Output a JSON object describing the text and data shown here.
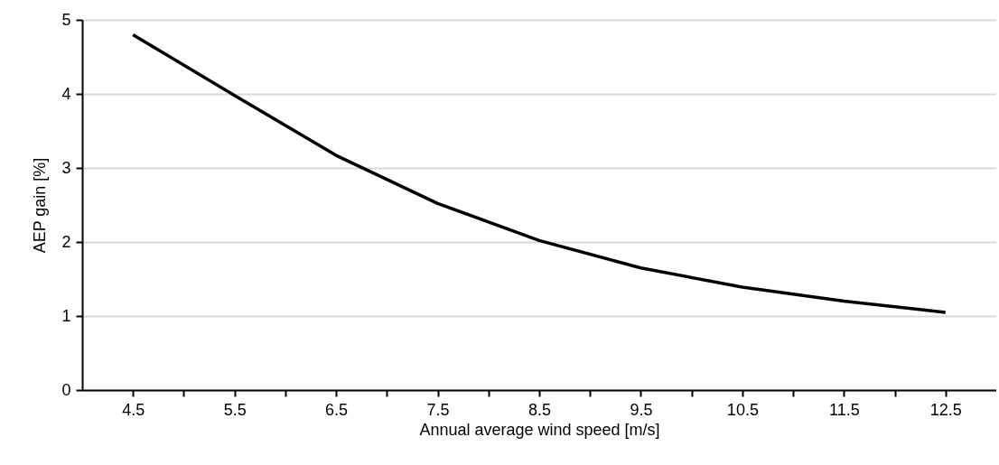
{
  "chart_data": {
    "type": "line",
    "xlabel": "Annual average wind speed [m/s]",
    "ylabel": "AEP gain [%]",
    "x": [
      4.5,
      5.5,
      6.5,
      7.5,
      8.5,
      9.5,
      10.5,
      11.5,
      12.5
    ],
    "series": [
      {
        "color": "#000000",
        "values": [
          4.8,
          3.98,
          3.17,
          2.52,
          2.02,
          1.65,
          1.39,
          1.2,
          1.05
        ]
      }
    ],
    "xlim": [
      4,
      13
    ],
    "xticks": [
      4.5,
      {
        "value": 5,
        "label": null
      },
      5.5,
      {
        "value": 6,
        "label": null
      },
      6.5,
      {
        "value": 7,
        "label": null
      },
      7.5,
      {
        "value": 8,
        "label": null
      },
      8.5,
      {
        "value": 9,
        "label": null
      },
      9.5,
      {
        "value": 10,
        "label": null
      },
      10.5,
      {
        "value": 11,
        "label": null
      },
      11.5,
      {
        "value": 12,
        "label": null
      },
      12.5
    ],
    "ylim": [
      0,
      5
    ],
    "yticks": [
      0,
      1,
      2,
      3,
      4,
      5
    ],
    "grid": "y",
    "legend": false,
    "marker": "none",
    "line_style": "solid"
  }
}
